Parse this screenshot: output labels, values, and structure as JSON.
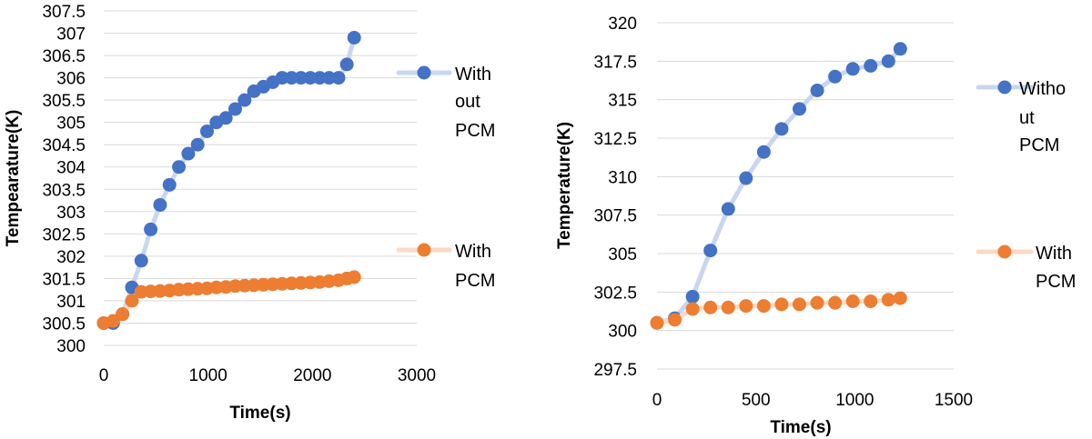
{
  "colors": {
    "without_pcm": "#4472c4",
    "with_pcm": "#ed7d31",
    "without_pcm_line": "#c9d6ef",
    "with_pcm_line": "#fbd9c4",
    "grid": "#d9d9d9"
  },
  "chart_data": [
    {
      "type": "line",
      "title": "",
      "xlabel": "Time(s)",
      "ylabel": "Tempearature(K)",
      "xlim": [
        0,
        3000
      ],
      "ylim": [
        300,
        307.5
      ],
      "x_ticks": [
        0,
        1000,
        2000,
        3000
      ],
      "x_tick_labels": [
        "0",
        "1000",
        "2000",
        "3000"
      ],
      "y_ticks": [
        300,
        300.5,
        301,
        301.5,
        302,
        302.5,
        303,
        303.5,
        304,
        304.5,
        305,
        305.5,
        306,
        306.5,
        307,
        307.5
      ],
      "y_tick_labels": [
        "300",
        "300.5",
        "301",
        "301.5",
        "302",
        "302.5",
        "303",
        "303.5",
        "304",
        "304.5",
        "305",
        "305.5",
        "306",
        "306.5",
        "307",
        "307.5"
      ],
      "grid": true,
      "legend_position": "right",
      "series": [
        {
          "name_lines": [
            "With",
            "out",
            "PCM"
          ],
          "color_key": "without_pcm",
          "x": [
            0,
            90,
            180,
            270,
            360,
            450,
            540,
            630,
            720,
            810,
            900,
            990,
            1080,
            1170,
            1260,
            1350,
            1440,
            1530,
            1620,
            1710,
            1800,
            1890,
            1980,
            2070,
            2160,
            2250,
            2330,
            2400
          ],
          "y": [
            300.5,
            300.5,
            300.7,
            301.3,
            301.9,
            302.6,
            303.15,
            303.6,
            304.0,
            304.3,
            304.5,
            304.8,
            305.0,
            305.1,
            305.3,
            305.5,
            305.7,
            305.8,
            305.9,
            306.0,
            306.0,
            306.0,
            306.0,
            306.0,
            306.0,
            306.0,
            306.3,
            306.9
          ]
        },
        {
          "name_lines": [
            "With",
            "PCM"
          ],
          "color_key": "with_pcm",
          "x": [
            0,
            90,
            180,
            270,
            360,
            450,
            540,
            630,
            720,
            810,
            900,
            990,
            1080,
            1170,
            1260,
            1350,
            1440,
            1530,
            1620,
            1710,
            1800,
            1890,
            1980,
            2070,
            2160,
            2250,
            2330,
            2400
          ],
          "y": [
            300.5,
            300.55,
            300.7,
            301.0,
            301.2,
            301.21,
            301.22,
            301.23,
            301.25,
            301.26,
            301.27,
            301.28,
            301.3,
            301.31,
            301.33,
            301.34,
            301.35,
            301.36,
            301.37,
            301.38,
            301.39,
            301.4,
            301.41,
            301.42,
            301.44,
            301.46,
            301.5,
            301.53
          ]
        }
      ]
    },
    {
      "type": "line",
      "title": "",
      "xlabel": "Time(s)",
      "ylabel": "Temperature(K)",
      "xlim": [
        0,
        1500
      ],
      "ylim": [
        297.5,
        320
      ],
      "x_ticks": [
        0,
        500,
        1000,
        1500
      ],
      "x_tick_labels": [
        "0",
        "500",
        "1000",
        "1500"
      ],
      "y_ticks": [
        297.5,
        300,
        302.5,
        305,
        307.5,
        310,
        312.5,
        315,
        317.5,
        320
      ],
      "y_tick_labels": [
        "297.5",
        "300",
        "302.5",
        "305",
        "307.5",
        "310",
        "312.5",
        "315",
        "317.5",
        "320"
      ],
      "grid": true,
      "legend_position": "right",
      "series": [
        {
          "name_lines": [
            "Witho",
            "ut",
            "PCM"
          ],
          "color_key": "without_pcm",
          "x": [
            0,
            90,
            180,
            270,
            360,
            450,
            540,
            630,
            720,
            810,
            900,
            990,
            1080,
            1170,
            1230
          ],
          "y": [
            300.5,
            300.8,
            302.2,
            305.2,
            307.9,
            309.9,
            311.6,
            313.1,
            314.4,
            315.6,
            316.5,
            317.0,
            317.2,
            317.5,
            318.3
          ]
        },
        {
          "name_lines": [
            "With",
            "PCM"
          ],
          "color_key": "with_pcm",
          "x": [
            0,
            90,
            180,
            270,
            360,
            450,
            540,
            630,
            720,
            810,
            900,
            990,
            1080,
            1170,
            1230
          ],
          "y": [
            300.5,
            300.7,
            301.4,
            301.5,
            301.5,
            301.6,
            301.6,
            301.7,
            301.7,
            301.8,
            301.8,
            301.9,
            301.9,
            302.0,
            302.1
          ]
        }
      ]
    }
  ]
}
